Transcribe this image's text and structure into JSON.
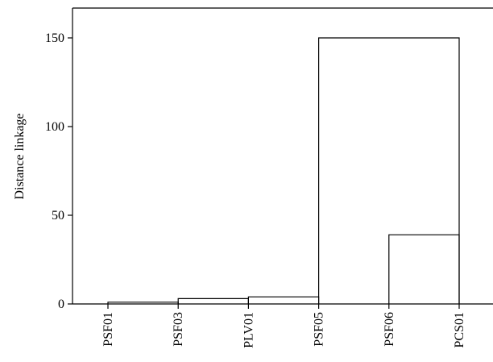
{
  "chart_data": {
    "type": "dendrogram",
    "title": "",
    "xlabel": "",
    "ylabel": "Distance linkage",
    "ylim": [
      0,
      165
    ],
    "y_ticks": [
      0,
      50,
      100,
      150
    ],
    "y_tick_labels": [
      "0",
      "50",
      "100",
      "150"
    ],
    "leaves": [
      "PSF01",
      "PSF03",
      "PLV01",
      "PSF05",
      "PSF06",
      "PCS01"
    ],
    "merges": [
      {
        "left_leaf": "PSF01",
        "right_leaf": "PSF03",
        "height": 1
      },
      {
        "left_leaf": "PSF03",
        "right_leaf": "PLV01",
        "height": 3
      },
      {
        "left_leaf": "PLV01",
        "right_leaf": "PSF05",
        "height": 4
      },
      {
        "left_leaf": "PSF06",
        "right_leaf": "PCS01",
        "height": 39
      },
      {
        "left_leaf": "PSF05",
        "right_leaf": "PCS01",
        "height": 150
      }
    ],
    "grid": false,
    "legend": "none"
  }
}
